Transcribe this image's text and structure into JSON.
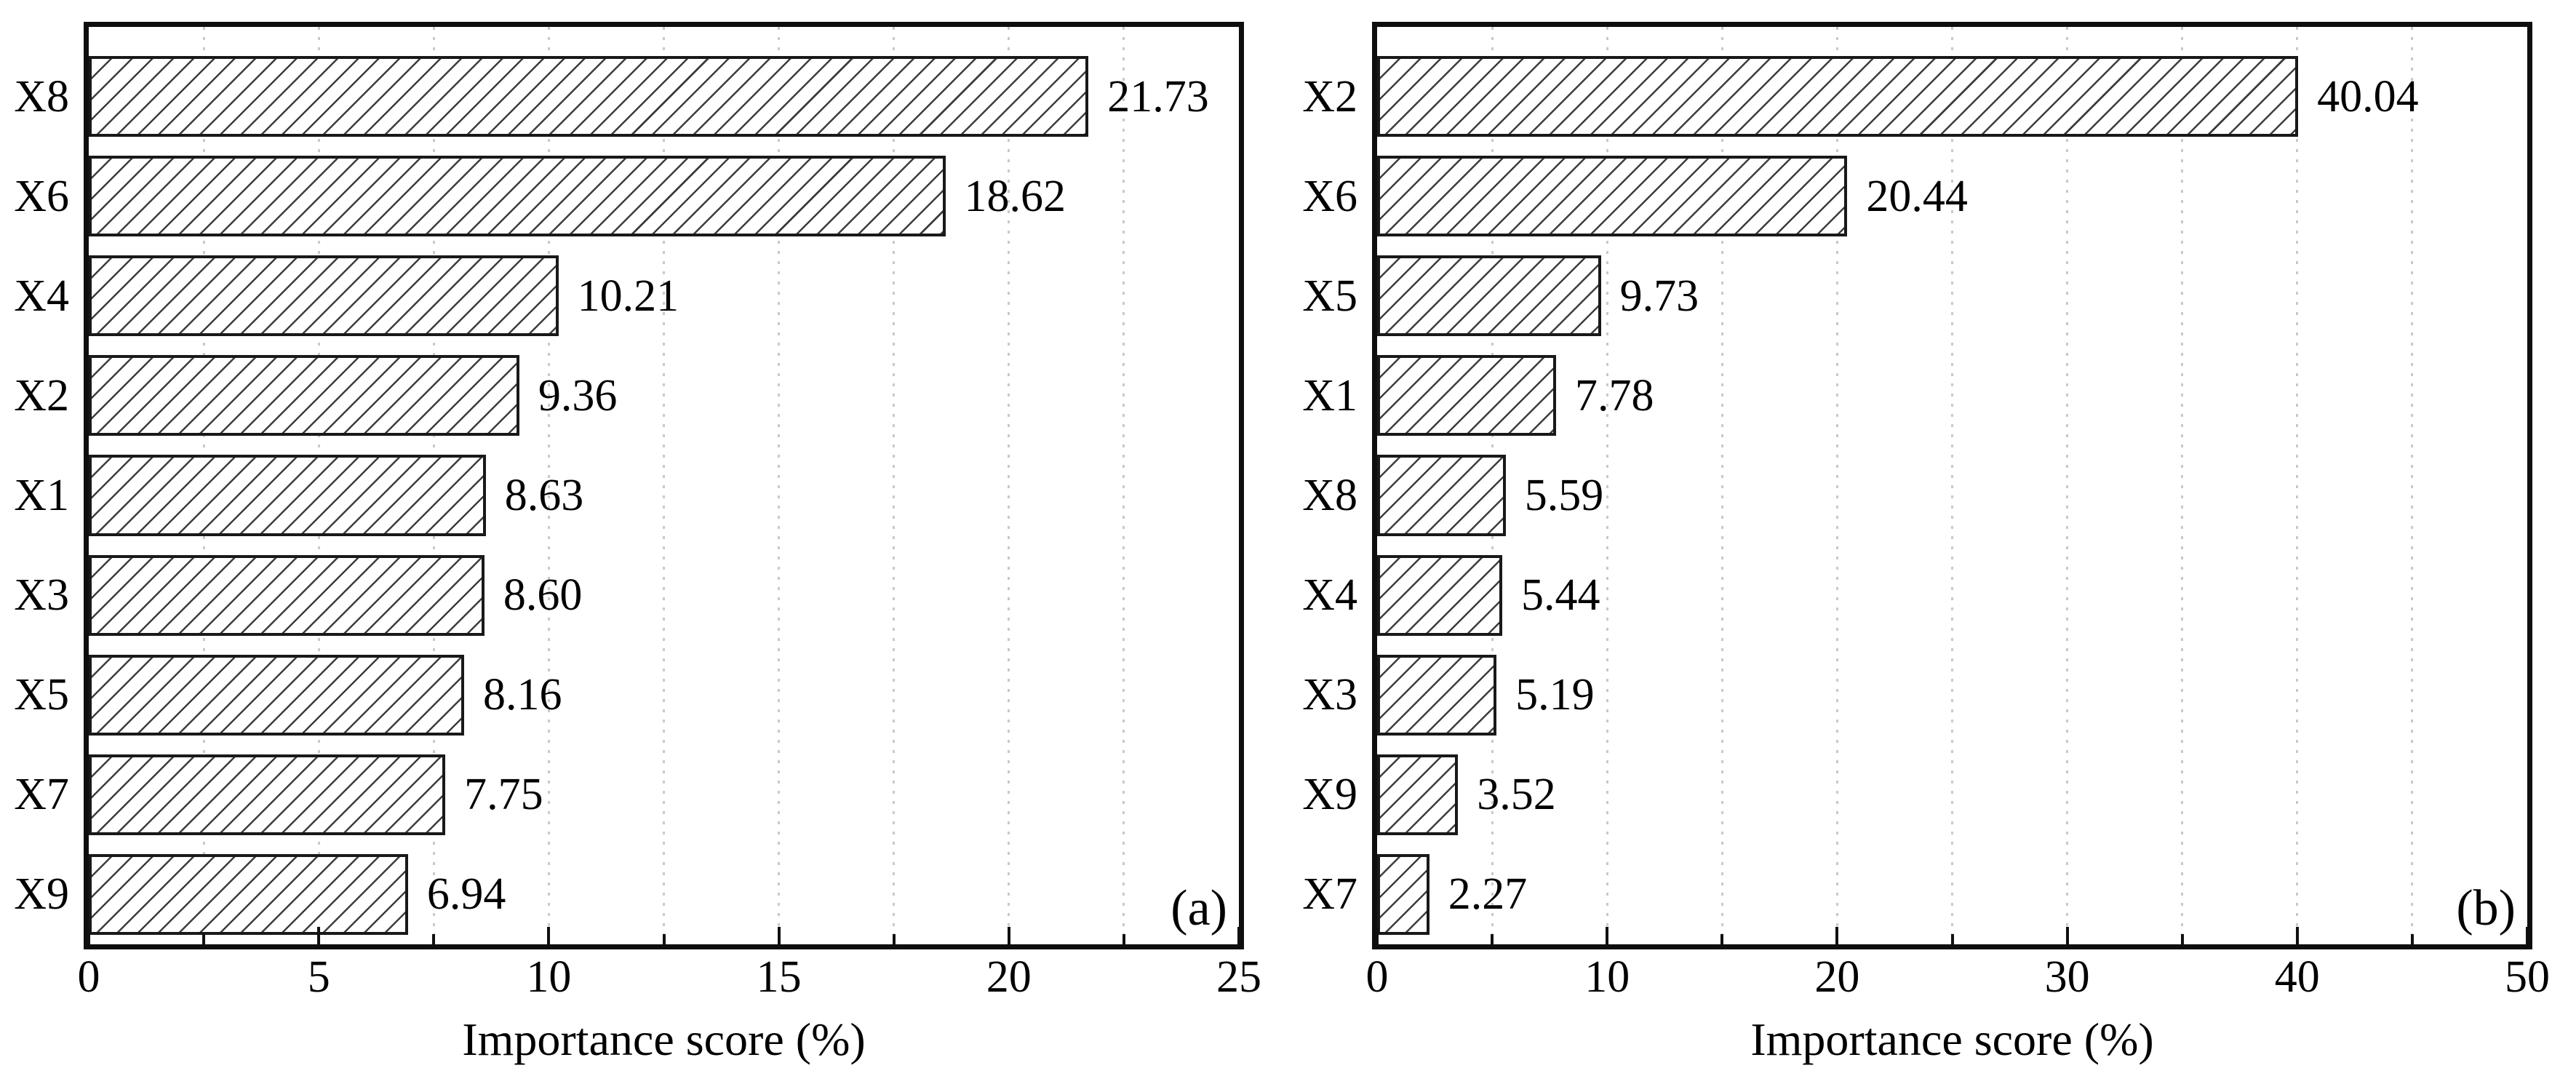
{
  "figure": {
    "description": "Two-panel horizontal bar chart of feature importance",
    "colors": {
      "background": "#ffffff",
      "frame": "#0e0e0e",
      "bar_border": "#191919",
      "bar_fill": "#ffffff",
      "hatch": "#3d3d3d",
      "gridline": "#c9c9c9",
      "text": "#000000"
    },
    "bar_style": "white bars with black diagonal '/' hatching",
    "grid_style": "dotted vertical gridlines at every tick interval"
  },
  "chart_data": [
    {
      "type": "bar",
      "orientation": "horizontal",
      "panel_label": "(a)",
      "categories": [
        "X8",
        "X6",
        "X4",
        "X2",
        "X1",
        "X3",
        "X5",
        "X7",
        "X9"
      ],
      "values": [
        21.73,
        18.62,
        10.21,
        9.36,
        8.63,
        8.6,
        8.16,
        7.75,
        6.94
      ],
      "value_labels": [
        "21.73",
        "18.62",
        "10.21",
        "9.36",
        "8.63",
        "8.60",
        "8.16",
        "7.75",
        "6.94"
      ],
      "title": "",
      "xlabel": "Importance score (%)",
      "ylabel": "",
      "xlim": [
        0,
        25
      ],
      "xtick_major": [
        0,
        5,
        10,
        15,
        20,
        25
      ],
      "xtick_minor": [
        2.5,
        7.5,
        12.5,
        17.5,
        22.5
      ],
      "xtick_labels": [
        "0",
        "5",
        "10",
        "15",
        "20",
        "25"
      ],
      "gridlines": [
        2.5,
        5,
        7.5,
        10,
        12.5,
        15,
        17.5,
        20,
        22.5
      ],
      "legend": "none",
      "grid": "on"
    },
    {
      "type": "bar",
      "orientation": "horizontal",
      "panel_label": "(b)",
      "categories": [
        "X2",
        "X6",
        "X5",
        "X1",
        "X8",
        "X4",
        "X3",
        "X9",
        "X7"
      ],
      "values": [
        40.04,
        20.44,
        9.73,
        7.78,
        5.59,
        5.44,
        5.19,
        3.52,
        2.27
      ],
      "value_labels": [
        "40.04",
        "20.44",
        "9.73",
        "7.78",
        "5.59",
        "5.44",
        "5.19",
        "3.52",
        "2.27"
      ],
      "title": "",
      "xlabel": "Importance score (%)",
      "ylabel": "",
      "xlim": [
        0,
        50
      ],
      "xtick_major": [
        0,
        10,
        20,
        30,
        40,
        50
      ],
      "xtick_minor": [
        5,
        15,
        25,
        35,
        45
      ],
      "xtick_labels": [
        "0",
        "10",
        "20",
        "30",
        "40",
        "50"
      ],
      "gridlines": [
        5,
        10,
        15,
        20,
        25,
        30,
        35,
        40,
        45
      ],
      "legend": "none",
      "grid": "on"
    }
  ]
}
